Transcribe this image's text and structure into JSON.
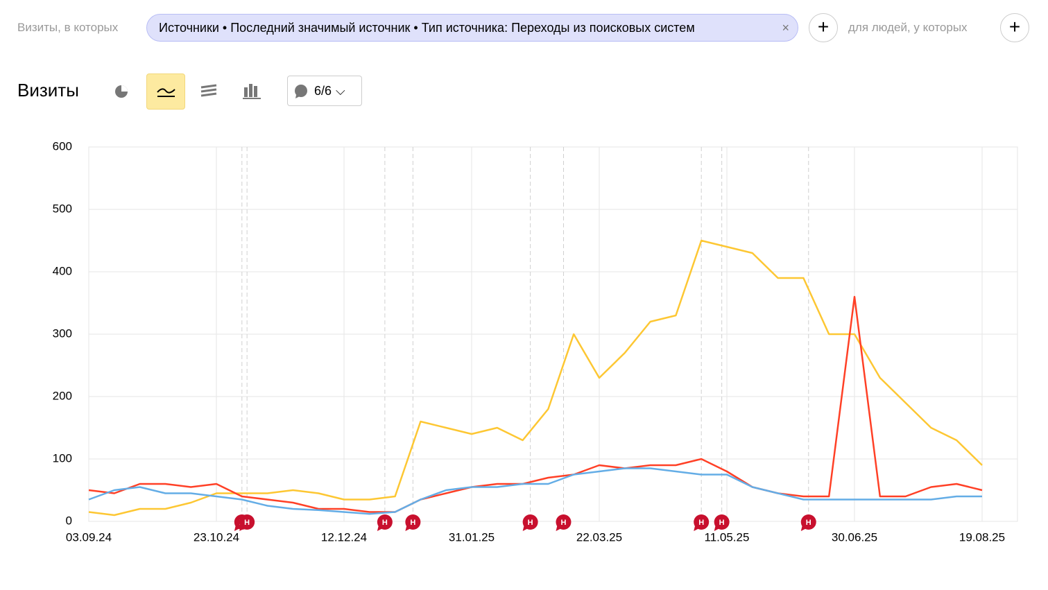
{
  "ui": {
    "filter_prefix": "Визиты, в которых",
    "filter_chip": "Источники • Последний значимый источник • Тип источника: Переходы из поисковых систем",
    "people_prefix": "для людей, у которых",
    "report_title": "Визиты",
    "notes_button": "6/6"
  },
  "chart_data": {
    "type": "line",
    "categories": [
      "03.09.24",
      null,
      null,
      null,
      null,
      "23.10.24",
      null,
      null,
      null,
      null,
      "12.12.24",
      null,
      null,
      null,
      null,
      "31.01.25",
      null,
      null,
      null,
      null,
      "22.03.25",
      null,
      null,
      null,
      null,
      "11.05.25",
      null,
      null,
      null,
      null,
      "30.06.25",
      null,
      null,
      null,
      null,
      "19.08.25"
    ],
    "series": [
      {
        "color": "#fdc733",
        "values": [
          15,
          10,
          20,
          20,
          30,
          45,
          45,
          45,
          50,
          45,
          35,
          35,
          40,
          160,
          150,
          140,
          150,
          130,
          180,
          300,
          230,
          270,
          320,
          330,
          450,
          440,
          430,
          390,
          390,
          300,
          300,
          230,
          190,
          150,
          130,
          90
        ]
      },
      {
        "color": "#ff4026",
        "values": [
          50,
          45,
          60,
          60,
          55,
          60,
          40,
          35,
          30,
          20,
          20,
          15,
          15,
          35,
          45,
          55,
          60,
          60,
          70,
          75,
          90,
          85,
          90,
          90,
          100,
          80,
          55,
          45,
          40,
          40,
          360,
          40,
          40,
          55,
          60,
          50
        ]
      },
      {
        "color": "#64ade6",
        "values": [
          35,
          50,
          55,
          45,
          45,
          40,
          35,
          25,
          20,
          18,
          15,
          12,
          15,
          35,
          50,
          55,
          55,
          60,
          60,
          75,
          80,
          85,
          85,
          80,
          75,
          75,
          55,
          45,
          35,
          35,
          35,
          35,
          35,
          35,
          40,
          40
        ]
      }
    ],
    "ylim": [
      0,
      600
    ],
    "yticks": [
      0,
      100,
      200,
      300,
      400,
      500,
      600
    ],
    "grid": true,
    "notes": [
      {
        "x": 6.0,
        "label": "Н"
      },
      {
        "x": 6.2,
        "label": "Н"
      },
      {
        "x": 11.6,
        "label": "Н"
      },
      {
        "x": 12.7,
        "label": "Н"
      },
      {
        "x": 17.3,
        "label": "Н"
      },
      {
        "x": 18.6,
        "label": "Н"
      },
      {
        "x": 24.0,
        "label": "Н"
      },
      {
        "x": 24.8,
        "label": "Н"
      },
      {
        "x": 28.2,
        "label": "Н"
      }
    ]
  }
}
